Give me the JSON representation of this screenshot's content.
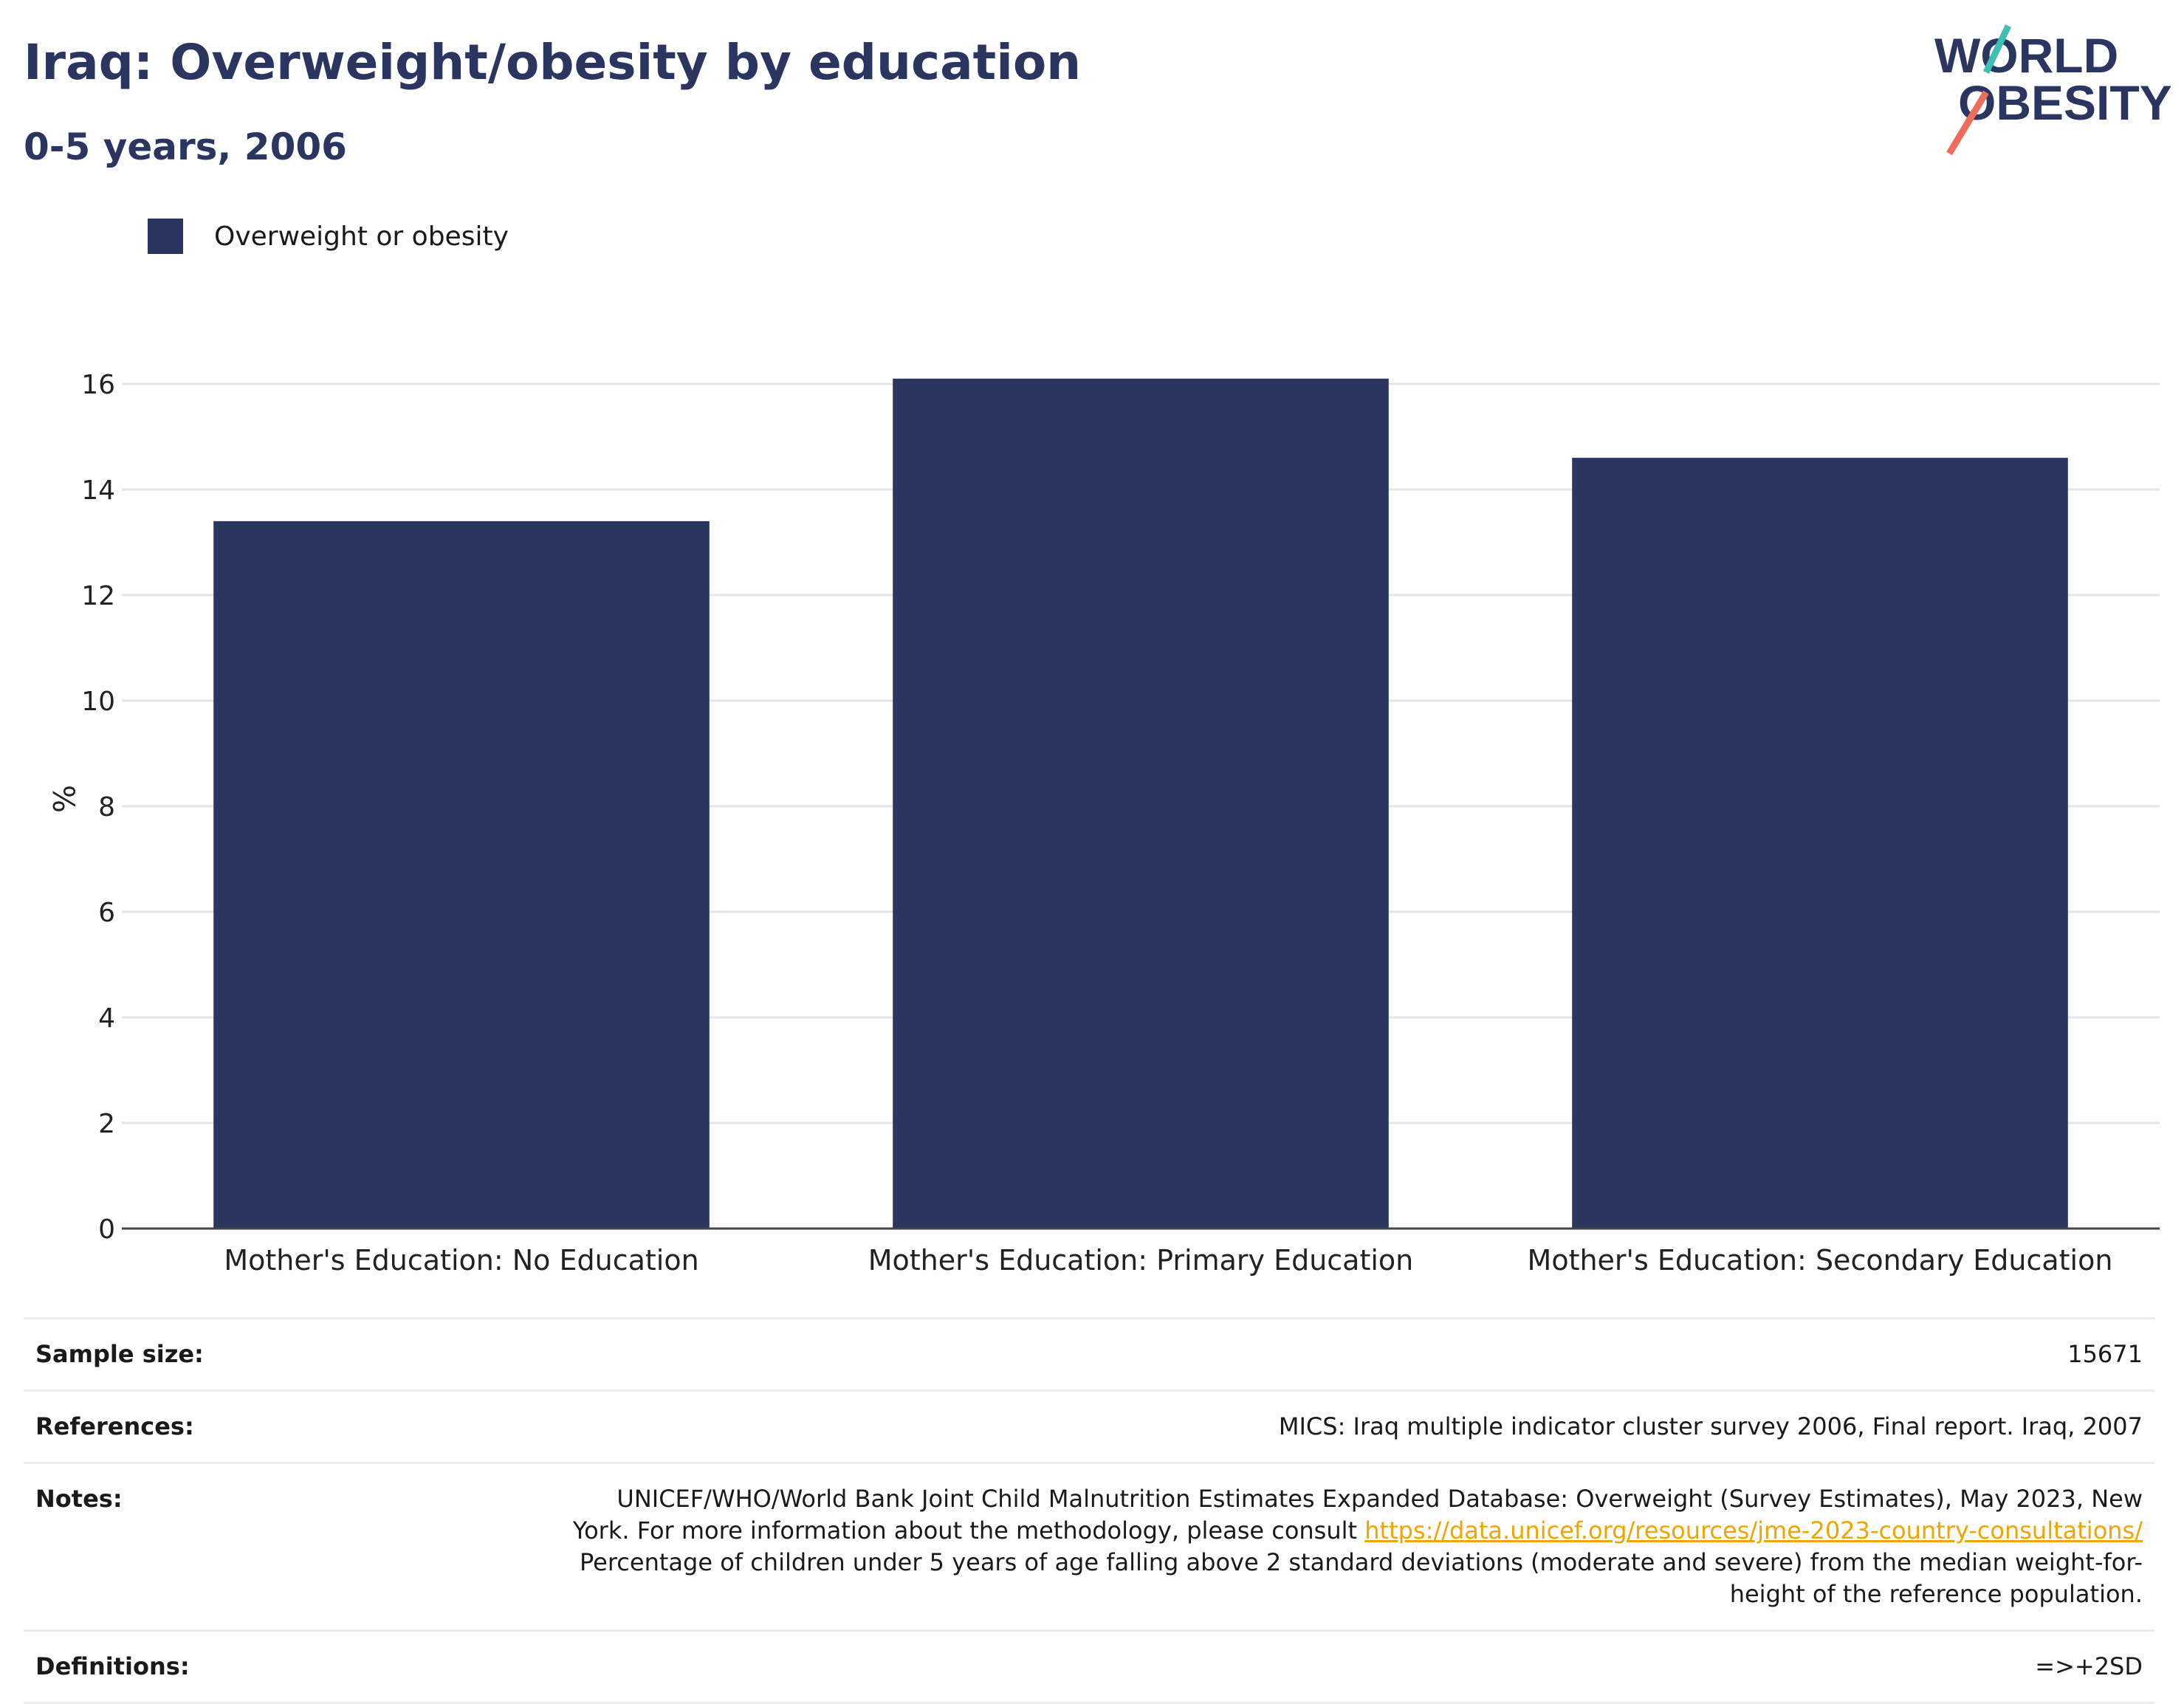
{
  "header": {
    "title": "Iraq: Overweight/obesity by education",
    "subtitle": "0-5 years, 2006",
    "logo_line1": "WORLD",
    "logo_line2": "OBESITY"
  },
  "legend": {
    "label": "Overweight or obesity"
  },
  "colors": {
    "bar": "#2a3560",
    "title": "#2a3560",
    "link": "#f0a500",
    "logo_teal": "#3ebfb5",
    "logo_coral": "#ef6b5a"
  },
  "chart_data": {
    "type": "bar",
    "categories": [
      "Mother's Education: No Education",
      "Mother's Education: Primary Education",
      "Mother's Education: Secondary Education"
    ],
    "series": [
      {
        "name": "Overweight or obesity",
        "values": [
          13.4,
          16.1,
          14.6
        ]
      }
    ],
    "title": "Iraq: Overweight/obesity by education",
    "subtitle": "0-5 years, 2006",
    "xlabel": "",
    "ylabel": "%",
    "ylim": [
      0,
      16
    ],
    "yticks": [
      0,
      2,
      4,
      6,
      8,
      10,
      12,
      14,
      16
    ],
    "grid": true,
    "legend_position": "top-left"
  },
  "info": {
    "sample_size_label": "Sample size:",
    "sample_size": "15671",
    "references_label": "References:",
    "references": "MICS: Iraq multiple indicator cluster survey 2006, Final report. Iraq, 2007",
    "notes_label": "Notes:",
    "notes_part1": "UNICEF/WHO/World Bank Joint Child Malnutrition Estimates Expanded Database: Overweight (Survey Estimates), May 2023, New York. For more information about the methodology, please consult ",
    "notes_link": "https://data.unicef.org/resources/jme-2023-country-consultations/",
    "notes_part2": "Percentage of children under 5 years of age falling above 2 standard deviations (moderate and severe) from the median weight-for-height of the reference population.",
    "definitions_label": "Definitions:",
    "definitions": "=>+2SD"
  }
}
